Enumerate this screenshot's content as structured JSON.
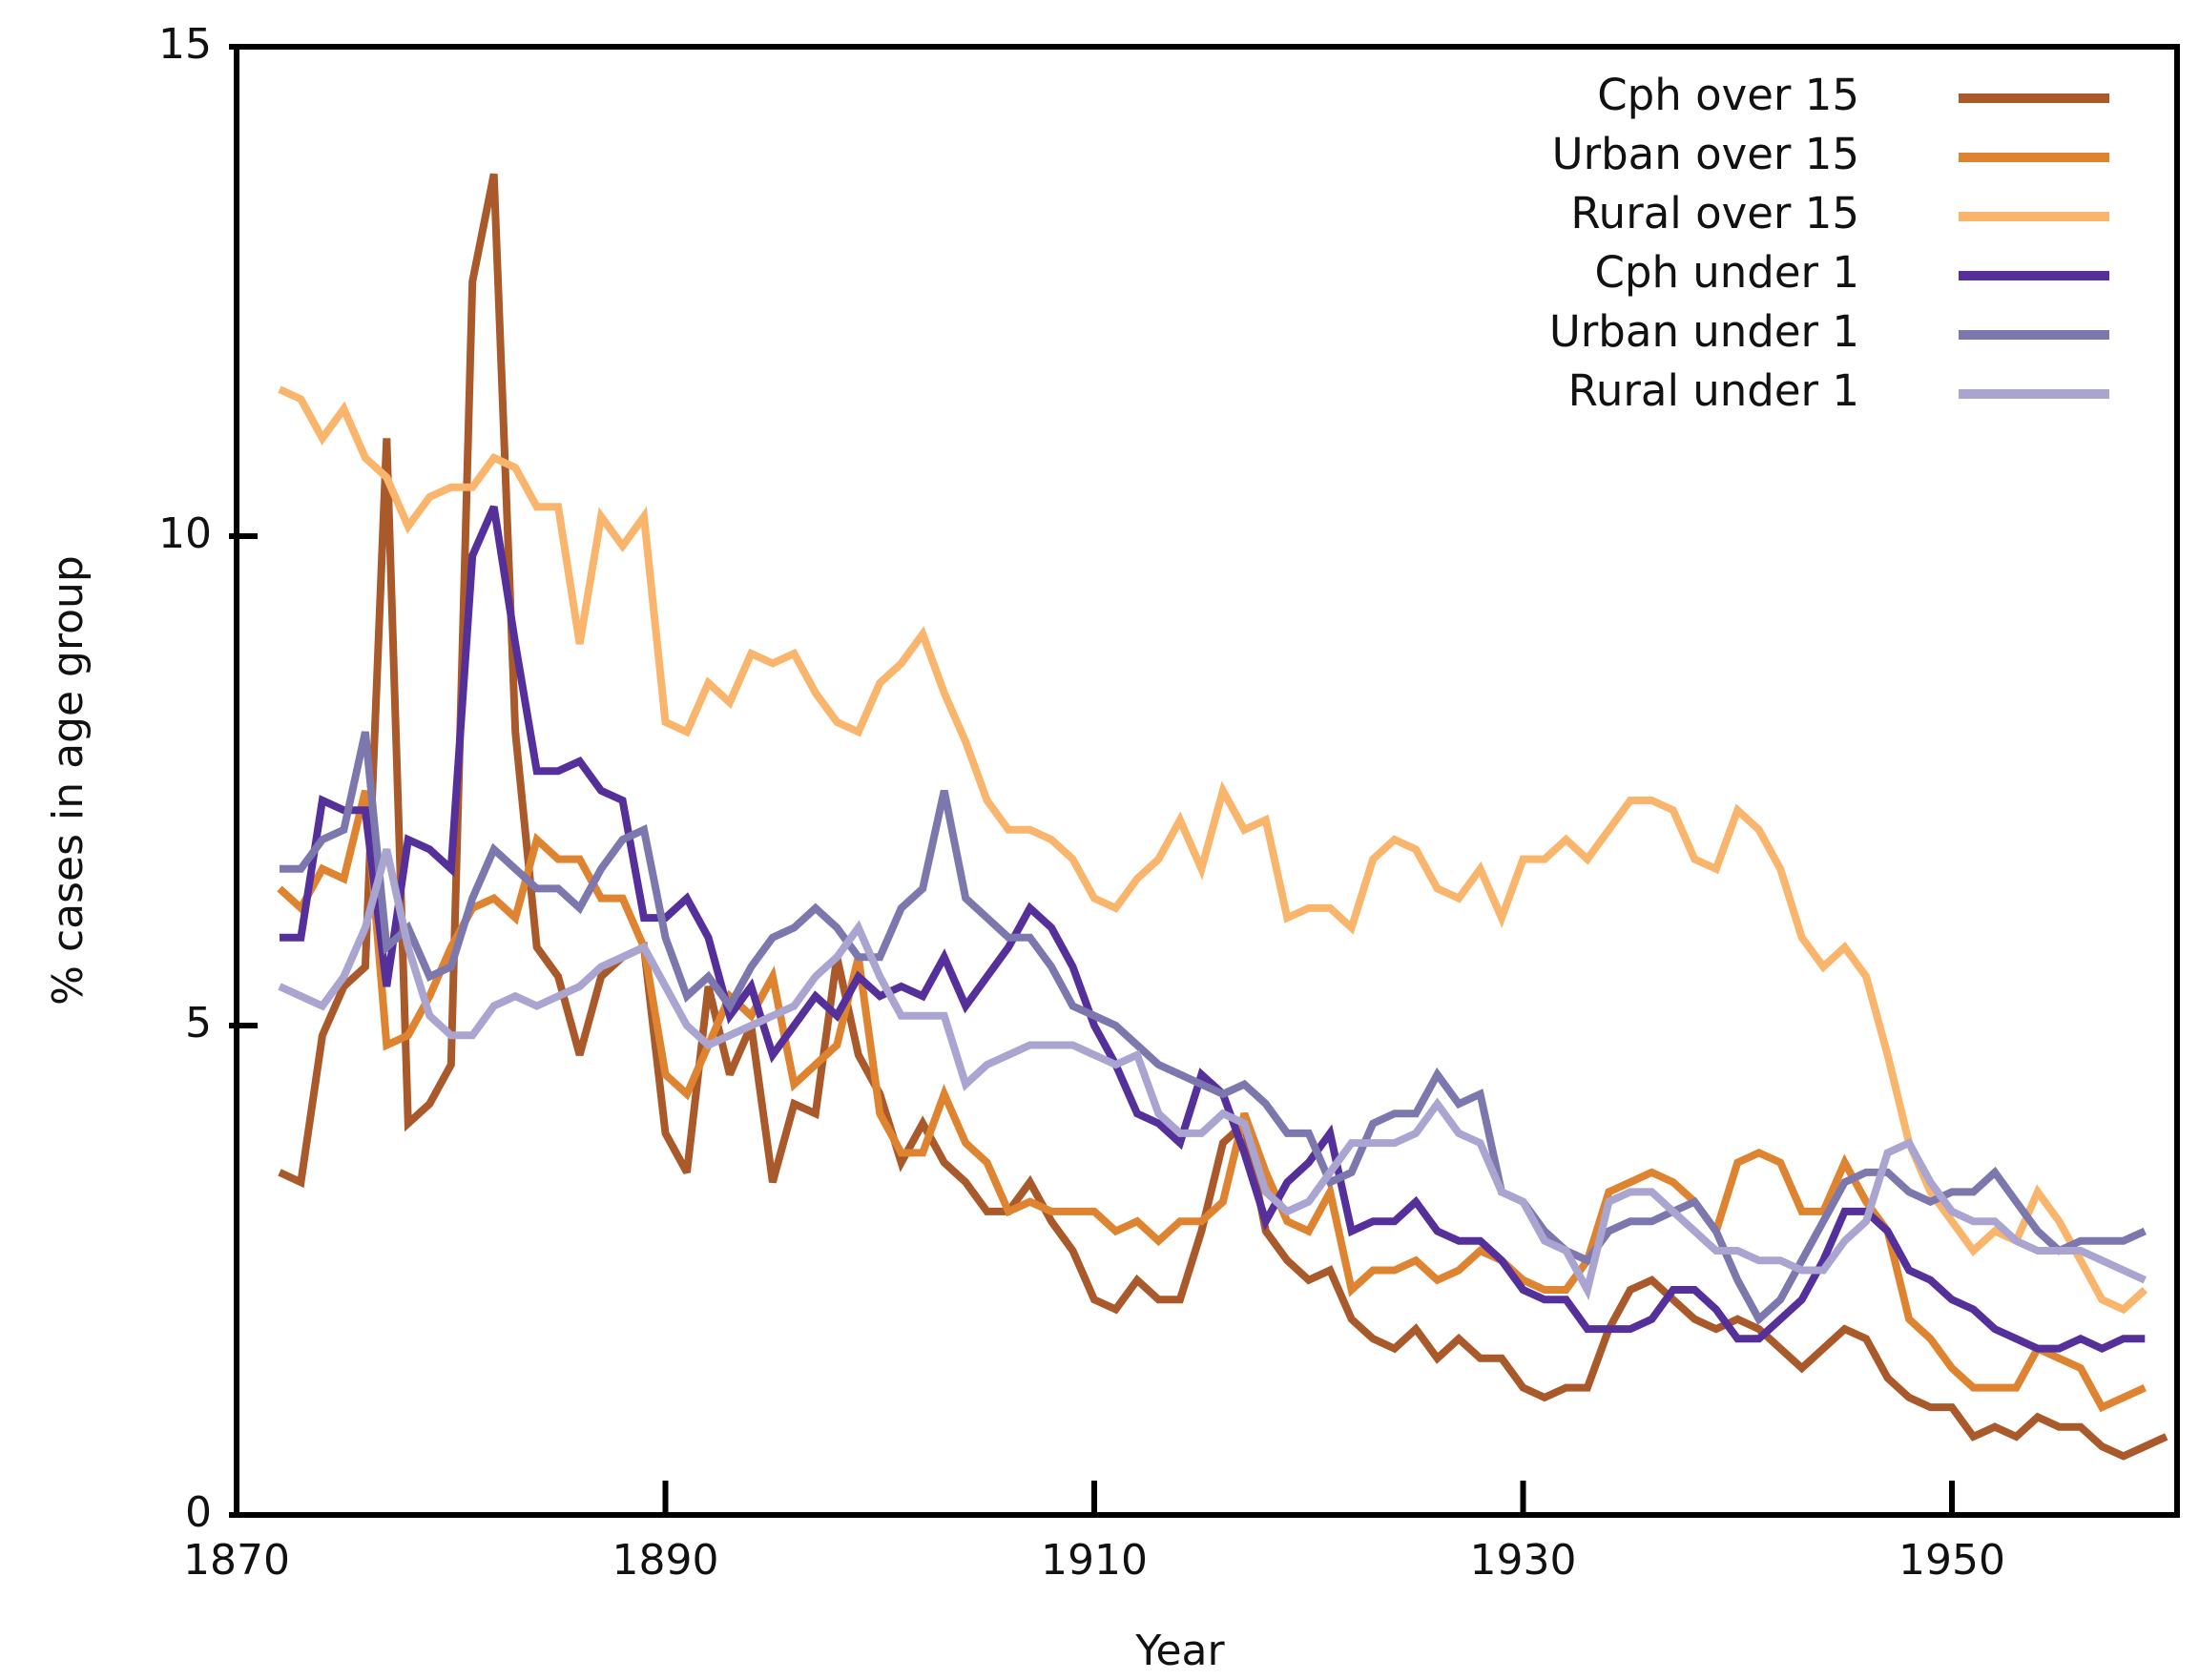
{
  "chart_data": {
    "type": "line",
    "x_label": "Year",
    "y_label": "% cases in age group",
    "xlim": [
      1870,
      1960.5
    ],
    "xticks": [
      1870,
      1890,
      1910,
      1930,
      1950
    ],
    "ylim": [
      0,
      15
    ],
    "yticks": [
      0,
      5,
      10,
      15
    ],
    "legend": "upper right",
    "x": [
      1872,
      1873,
      1874,
      1875,
      1876,
      1877,
      1878,
      1879,
      1880,
      1881,
      1882,
      1883,
      1884,
      1885,
      1886,
      1887,
      1888,
      1889,
      1890,
      1891,
      1892,
      1893,
      1894,
      1895,
      1896,
      1897,
      1898,
      1899,
      1900,
      1901,
      1902,
      1903,
      1904,
      1905,
      1906,
      1907,
      1908,
      1909,
      1910,
      1911,
      1912,
      1913,
      1914,
      1915,
      1916,
      1917,
      1918,
      1919,
      1920,
      1921,
      1922,
      1923,
      1924,
      1925,
      1926,
      1927,
      1928,
      1929,
      1930,
      1931,
      1932,
      1933,
      1934,
      1935,
      1936,
      1937,
      1938,
      1939,
      1940,
      1941,
      1942,
      1943,
      1944,
      1945,
      1946,
      1947,
      1948,
      1949,
      1950,
      1951,
      1952,
      1953,
      1954,
      1955,
      1956,
      1957,
      1958,
      1959,
      1960
    ],
    "series": [
      {
        "name": "Cph over 15",
        "color": "#a9592a",
        "values": [
          3.5,
          3.4,
          4.9,
          5.4,
          5.6,
          11.0,
          4.0,
          4.2,
          4.6,
          12.6,
          13.7,
          8.0,
          5.8,
          5.5,
          4.7,
          5.5,
          5.7,
          5.8,
          3.9,
          3.5,
          5.4,
          4.5,
          5.0,
          3.4,
          4.2,
          4.1,
          5.7,
          4.7,
          4.3,
          3.6,
          4.0,
          3.6,
          3.4,
          3.1,
          3.1,
          3.4,
          3.0,
          2.7,
          2.2,
          2.1,
          2.4,
          2.2,
          2.2,
          2.9,
          3.8,
          4.0,
          2.9,
          2.6,
          2.4,
          2.5,
          2.0,
          1.8,
          1.7,
          1.9,
          1.6,
          1.8,
          1.6,
          1.6,
          1.3,
          1.2,
          1.3,
          1.3,
          1.9,
          2.3,
          2.4,
          2.2,
          2.0,
          1.9,
          2.0,
          1.9,
          1.7,
          1.5,
          1.7,
          1.9,
          1.8,
          1.4,
          1.2,
          1.1,
          1.1,
          0.8,
          0.9,
          0.8,
          1.0,
          0.9,
          0.9,
          0.7,
          0.6,
          0.7,
          0.8
        ]
      },
      {
        "name": "Urban over 15",
        "color": "#de8430",
        "values": [
          6.4,
          6.2,
          6.6,
          6.5,
          7.4,
          4.8,
          4.9,
          5.3,
          5.8,
          6.2,
          6.3,
          6.1,
          6.9,
          6.7,
          6.7,
          6.3,
          6.3,
          5.8,
          4.5,
          4.3,
          4.8,
          5.3,
          5.1,
          5.5,
          4.4,
          4.6,
          4.8,
          5.7,
          4.1,
          3.7,
          3.7,
          4.3,
          3.8,
          3.6,
          3.1,
          3.2,
          3.1,
          3.1,
          3.1,
          2.9,
          3.0,
          2.8,
          3.0,
          3.0,
          3.2,
          4.1,
          3.5,
          3.0,
          2.9,
          3.3,
          2.3,
          2.5,
          2.5,
          2.6,
          2.4,
          2.5,
          2.7,
          2.6,
          2.4,
          2.3,
          2.3,
          2.6,
          3.3,
          3.4,
          3.5,
          3.4,
          3.2,
          2.9,
          3.6,
          3.7,
          3.6,
          3.1,
          3.1,
          3.6,
          3.2,
          2.9,
          2.0,
          1.8,
          1.5,
          1.3,
          1.3,
          1.3,
          1.7,
          1.6,
          1.5,
          1.1,
          1.2,
          1.3,
          null
        ]
      },
      {
        "name": "Rural over 15",
        "color": "#f9b56b",
        "values": [
          11.5,
          11.4,
          11.0,
          11.3,
          10.8,
          10.6,
          10.1,
          10.4,
          10.5,
          10.5,
          10.8,
          10.7,
          10.3,
          10.3,
          8.9,
          10.2,
          9.9,
          10.2,
          8.1,
          8.0,
          8.5,
          8.3,
          8.8,
          8.7,
          8.8,
          8.4,
          8.1,
          8.0,
          8.5,
          8.7,
          9.0,
          8.4,
          7.9,
          7.3,
          7.0,
          7.0,
          6.9,
          6.7,
          6.3,
          6.2,
          6.5,
          6.7,
          7.1,
          6.6,
          7.4,
          7.0,
          7.1,
          6.1,
          6.2,
          6.2,
          6.0,
          6.7,
          6.9,
          6.8,
          6.4,
          6.3,
          6.6,
          6.1,
          6.7,
          6.7,
          6.9,
          6.7,
          7.0,
          7.3,
          7.3,
          7.2,
          6.7,
          6.6,
          7.2,
          7.0,
          6.6,
          5.9,
          5.6,
          5.8,
          5.5,
          4.7,
          3.8,
          3.3,
          3.0,
          2.7,
          2.9,
          2.8,
          3.3,
          3.0,
          2.6,
          2.2,
          2.1,
          2.3,
          null
        ]
      },
      {
        "name": "Cph under 1",
        "color": "#55309a",
        "values": [
          5.9,
          5.9,
          7.3,
          7.2,
          7.2,
          5.4,
          6.9,
          6.8,
          6.6,
          9.8,
          10.3,
          8.9,
          7.6,
          7.6,
          7.7,
          7.4,
          7.3,
          6.1,
          6.1,
          6.3,
          5.9,
          5.1,
          5.4,
          4.7,
          5.0,
          5.3,
          5.1,
          5.5,
          5.3,
          5.4,
          5.3,
          5.7,
          5.2,
          5.5,
          5.8,
          6.2,
          6.0,
          5.6,
          5.0,
          4.6,
          4.1,
          4.0,
          3.8,
          4.5,
          4.3,
          3.7,
          3.0,
          3.4,
          3.6,
          3.9,
          2.9,
          3.0,
          3.0,
          3.2,
          2.9,
          2.8,
          2.8,
          2.6,
          2.3,
          2.2,
          2.2,
          1.9,
          1.9,
          1.9,
          2.0,
          2.3,
          2.3,
          2.1,
          1.8,
          1.8,
          2.0,
          2.2,
          2.6,
          3.1,
          3.1,
          2.9,
          2.5,
          2.4,
          2.2,
          2.1,
          1.9,
          1.8,
          1.7,
          1.7,
          1.8,
          1.7,
          1.8,
          1.8,
          null
        ]
      },
      {
        "name": "Urban under 1",
        "color": "#7c78ad",
        "values": [
          6.6,
          6.6,
          6.9,
          7.0,
          8.0,
          5.8,
          6.0,
          5.5,
          5.6,
          6.3,
          6.8,
          6.6,
          6.4,
          6.4,
          6.2,
          6.6,
          6.9,
          7.0,
          5.9,
          5.3,
          5.5,
          5.2,
          5.6,
          5.9,
          6.0,
          6.2,
          6.0,
          5.7,
          5.7,
          6.2,
          6.4,
          7.4,
          6.3,
          6.1,
          5.9,
          5.9,
          5.6,
          5.2,
          5.1,
          5.0,
          4.8,
          4.6,
          4.5,
          4.4,
          4.3,
          4.4,
          4.2,
          3.9,
          3.9,
          3.4,
          3.5,
          4.0,
          4.1,
          4.1,
          4.5,
          4.2,
          4.3,
          3.3,
          3.2,
          2.9,
          2.7,
          2.6,
          2.9,
          3.0,
          3.0,
          3.1,
          3.2,
          2.9,
          2.4,
          2.0,
          2.2,
          2.6,
          3.0,
          3.4,
          3.5,
          3.5,
          3.3,
          3.2,
          3.3,
          3.3,
          3.5,
          3.2,
          2.9,
          2.7,
          2.8,
          2.8,
          2.8,
          2.9,
          null
        ]
      },
      {
        "name": "Rural under 1",
        "color": "#aaa4d0",
        "values": [
          5.4,
          5.3,
          5.2,
          5.5,
          6.0,
          6.8,
          5.8,
          5.1,
          4.9,
          4.9,
          5.2,
          5.3,
          5.2,
          5.3,
          5.4,
          5.6,
          5.7,
          5.8,
          5.4,
          5.0,
          4.8,
          4.9,
          5.0,
          5.1,
          5.2,
          5.5,
          5.7,
          6.0,
          5.5,
          5.1,
          5.1,
          5.1,
          4.4,
          4.6,
          4.7,
          4.8,
          4.8,
          4.8,
          4.7,
          4.6,
          4.7,
          4.1,
          3.9,
          3.9,
          4.1,
          4.0,
          3.3,
          3.1,
          3.2,
          3.5,
          3.8,
          3.8,
          3.8,
          3.9,
          4.2,
          3.9,
          3.8,
          3.3,
          3.2,
          2.8,
          2.7,
          2.3,
          3.2,
          3.3,
          3.3,
          3.1,
          2.9,
          2.7,
          2.7,
          2.6,
          2.6,
          2.5,
          2.5,
          2.8,
          3.0,
          3.7,
          3.8,
          3.4,
          3.1,
          3.0,
          3.0,
          2.8,
          2.7,
          2.7,
          2.7,
          2.6,
          2.5,
          2.4,
          null
        ]
      }
    ]
  }
}
